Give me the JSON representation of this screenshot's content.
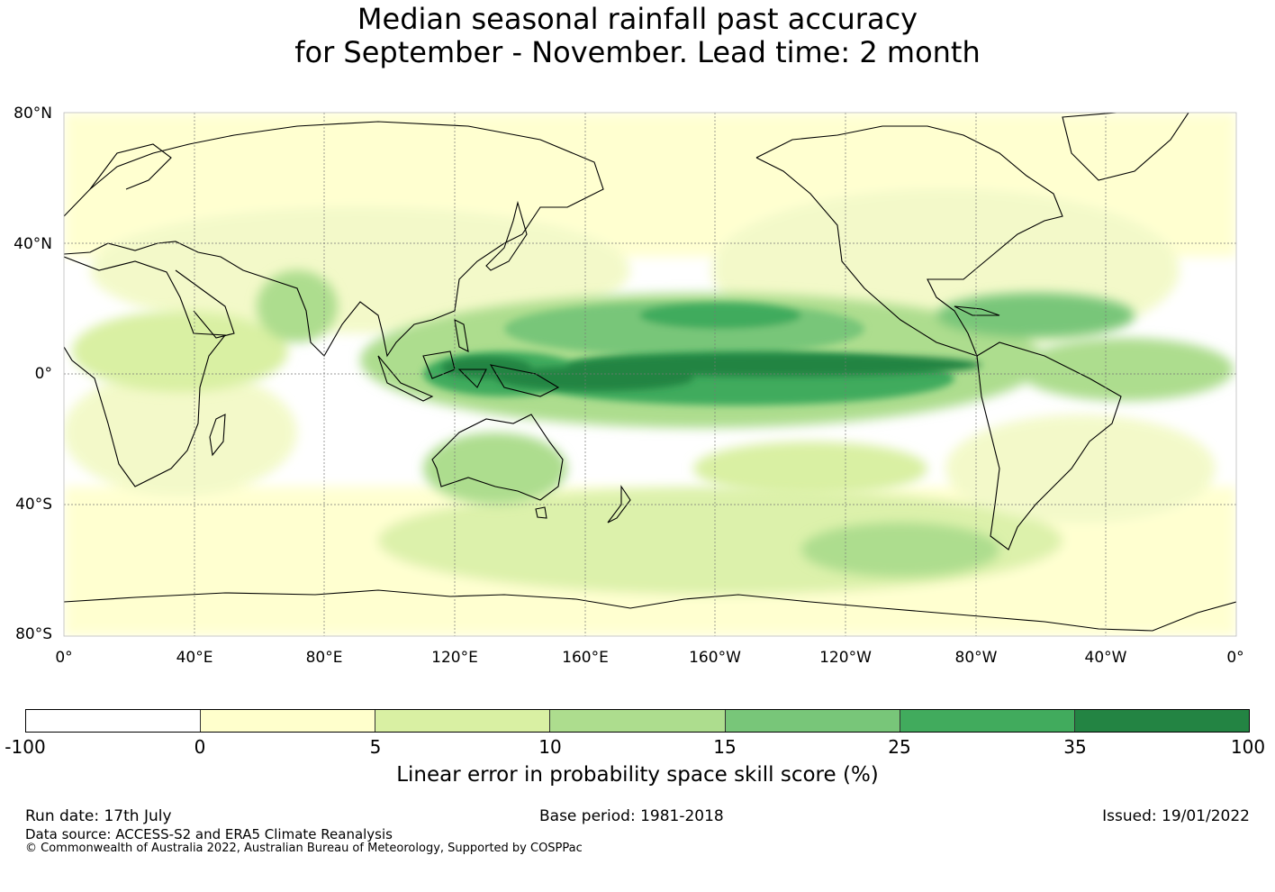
{
  "title_line1": "Median seasonal rainfall past accuracy",
  "title_line2": "for September - November. Lead time: 2 month",
  "map": {
    "lat_labels": [
      "80°N",
      "40°N",
      "0°",
      "40°S",
      "80°S"
    ],
    "lon_labels": [
      "0°",
      "40°E",
      "80°E",
      "120°E",
      "160°E",
      "160°W",
      "120°W",
      "80°W",
      "40°W",
      "0°"
    ],
    "land_color": "#fbfcd6",
    "coastline_color": "#000000"
  },
  "colorbar": {
    "colors": [
      "#ffffff",
      "#ffffcc",
      "#d9f0a3",
      "#addd8e",
      "#78c679",
      "#41ab5d",
      "#238443"
    ],
    "ticks": [
      "-100",
      "0",
      "5",
      "10",
      "15",
      "25",
      "35",
      "100"
    ],
    "label": "Linear error in probability space skill score (%)"
  },
  "footer": {
    "run_date": "Run date: 17th July",
    "base_period": "Base period: 1981-2018",
    "issued": "Issued: 19/01/2022",
    "data_source": "Data source: ACCESS-S2 and ERA5 Climate Reanalysis",
    "copyright": "© Commonwealth of Australia 2022, Australian Bureau of Meteorology, Supported by COSPPac"
  }
}
